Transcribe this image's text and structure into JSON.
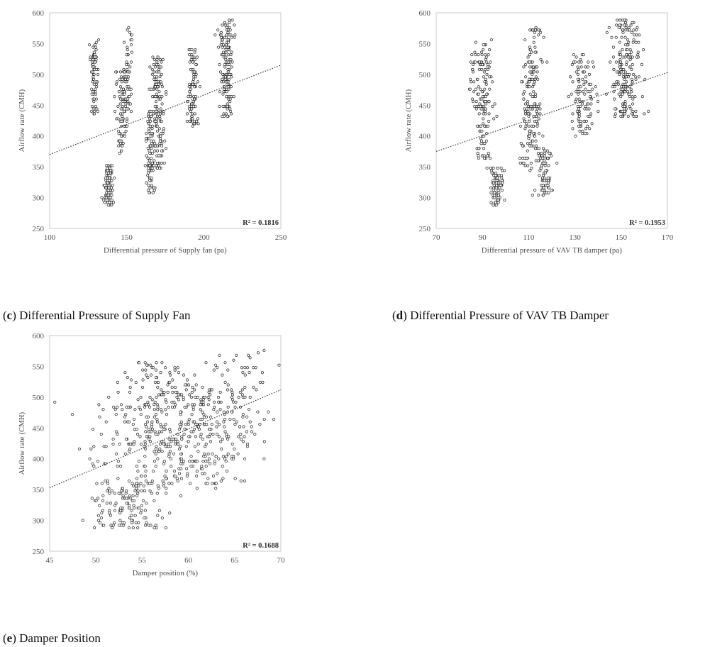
{
  "chart_data": [
    {
      "type": "scatter",
      "caption_letter": "c",
      "caption_text": "Differential Pressure of Supply Fan",
      "xlabel": "Differential  pressure  of  Supply  fan  (pa)",
      "ylabel": "Airflow  rate  (CMH)",
      "xlim": [
        100,
        250
      ],
      "ylim": [
        250,
        600
      ],
      "xticks": [
        100,
        150,
        200,
        250
      ],
      "yticks": [
        250,
        300,
        350,
        400,
        450,
        500,
        550,
        600
      ],
      "trendline": {
        "x": [
          100,
          250
        ],
        "y": [
          370,
          515
        ]
      },
      "r2_label": "R² = 0.1816",
      "grid": false,
      "clusters": [
        {
          "x": 129,
          "xs": 1.2,
          "ylo": 435,
          "yhi": 555,
          "n": 70
        },
        {
          "x": 138,
          "xs": 1.4,
          "ylo": 287,
          "yhi": 352,
          "n": 110
        },
        {
          "x": 147,
          "xs": 1.8,
          "ylo": 370,
          "yhi": 505,
          "n": 90
        },
        {
          "x": 151,
          "xs": 1.6,
          "ylo": 440,
          "yhi": 575,
          "n": 45
        },
        {
          "x": 165,
          "xs": 1.4,
          "ylo": 305,
          "yhi": 440,
          "n": 80
        },
        {
          "x": 170,
          "xs": 2.0,
          "ylo": 345,
          "yhi": 530,
          "n": 150
        },
        {
          "x": 193,
          "xs": 1.8,
          "ylo": 415,
          "yhi": 545,
          "n": 95
        },
        {
          "x": 215,
          "xs": 2.3,
          "ylo": 430,
          "yhi": 588,
          "n": 150
        }
      ]
    },
    {
      "type": "scatter",
      "caption_letter": "d",
      "caption_text": "Differential Pressure of VAV TB Damper",
      "xlabel": "Differential  pressure  of  VAV  TB  damper  (pa)",
      "ylabel": "Airflow  rate  (CMH)",
      "xlim": [
        70,
        170
      ],
      "ylim": [
        250,
        600
      ],
      "xticks": [
        70,
        90,
        110,
        130,
        150,
        170
      ],
      "yticks": [
        250,
        300,
        350,
        400,
        450,
        500,
        550,
        600
      ],
      "trendline": {
        "x": [
          70,
          170
        ],
        "y": [
          375,
          503
        ]
      },
      "r2_label": "R² = 0.1953",
      "grid": false,
      "clusters": [
        {
          "x": 87,
          "xs": 1.5,
          "ylo": 430,
          "yhi": 540,
          "n": 35
        },
        {
          "x": 91,
          "xs": 1.6,
          "ylo": 360,
          "yhi": 555,
          "n": 120
        },
        {
          "x": 96,
          "xs": 1.3,
          "ylo": 287,
          "yhi": 350,
          "n": 90
        },
        {
          "x": 109,
          "xs": 1.6,
          "ylo": 340,
          "yhi": 500,
          "n": 50
        },
        {
          "x": 112,
          "xs": 1.8,
          "ylo": 380,
          "yhi": 575,
          "n": 130
        },
        {
          "x": 117,
          "xs": 1.6,
          "ylo": 300,
          "yhi": 380,
          "n": 90
        },
        {
          "x": 133,
          "xs": 2.8,
          "ylo": 400,
          "yhi": 535,
          "n": 110
        },
        {
          "x": 152,
          "xs": 3.0,
          "ylo": 430,
          "yhi": 588,
          "n": 200
        }
      ]
    },
    {
      "type": "scatter",
      "caption_letter": "e",
      "caption_text": "Damper Position",
      "xlabel": "Damper  position  (%)",
      "ylabel": "Airflow  rate  (CMH)",
      "xlim": [
        45,
        70
      ],
      "ylim": [
        250,
        600
      ],
      "xticks": [
        45,
        50,
        55,
        60,
        65,
        70
      ],
      "yticks": [
        250,
        300,
        350,
        400,
        450,
        500,
        550,
        600
      ],
      "trendline": {
        "x": [
          45,
          70
        ],
        "y": [
          353,
          512
        ]
      },
      "r2_label": "R² = 0.1688",
      "grid": false,
      "clusters": [
        {
          "x": 53.5,
          "xs": 2.0,
          "ylo": 287,
          "yhi": 365,
          "n": 140
        },
        {
          "x": 56.5,
          "xs": 2.4,
          "ylo": 410,
          "yhi": 560,
          "n": 170
        },
        {
          "x": 61.5,
          "xs": 2.6,
          "ylo": 360,
          "yhi": 520,
          "n": 210
        },
        {
          "x": 65.0,
          "xs": 2.0,
          "ylo": 400,
          "yhi": 575,
          "n": 90
        },
        {
          "x": 52.0,
          "xs": 2.2,
          "ylo": 360,
          "yhi": 520,
          "n": 45
        },
        {
          "x": 58.0,
          "xs": 3.0,
          "ylo": 350,
          "yhi": 460,
          "n": 60
        }
      ]
    }
  ]
}
